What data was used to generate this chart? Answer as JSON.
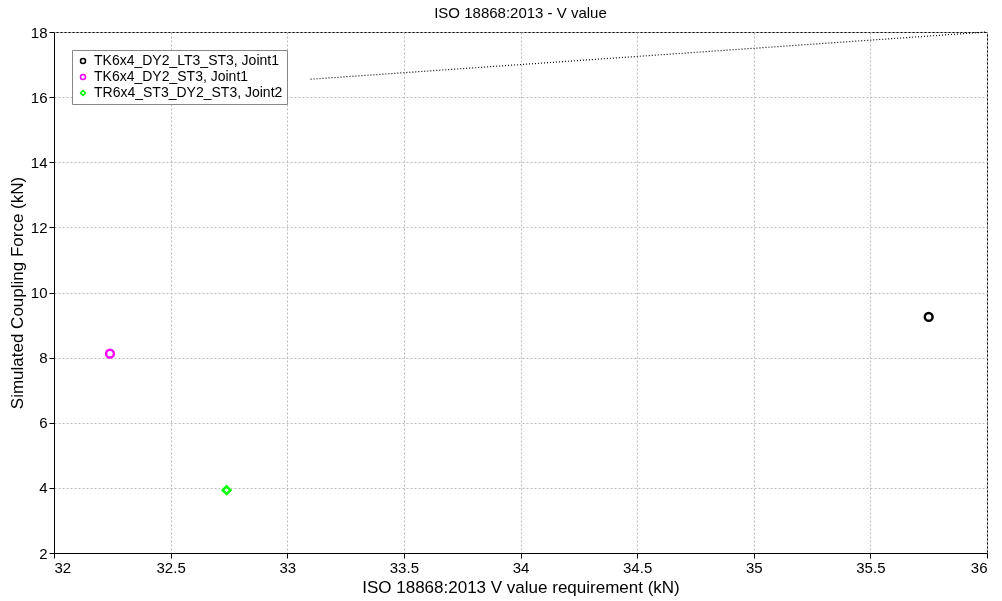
{
  "chart_data": {
    "type": "scatter",
    "title": "ISO 18868:2013 - V value",
    "xlabel": "ISO 18868:2013 V value requirement (kN)",
    "ylabel": "Simulated Coupling Force (kN)",
    "xlim": [
      32,
      36
    ],
    "xticks": [
      32,
      32.5,
      33,
      33.5,
      34,
      34.5,
      35,
      35.5,
      36
    ],
    "ylim": [
      2,
      18
    ],
    "yticks": [
      2,
      4,
      6,
      8,
      10,
      12,
      14,
      16,
      18
    ],
    "grid": true,
    "legend": "top left",
    "series": [
      {
        "name": "TK6x4_DY2_LT3_ST3, Joint1",
        "color": "#000000",
        "marker": "circle",
        "x": [
          35.75
        ],
        "values": [
          9.25
        ]
      },
      {
        "name": "TK6x4_DY2_ST3, Joint1",
        "color": "#ff00ff",
        "marker": "circle",
        "x": [
          32.24
        ],
        "values": [
          8.12
        ]
      },
      {
        "name": "TR6x4_ST3_DY2_ST3, Joint2",
        "color": "#00ff00",
        "marker": "diamond",
        "x": [
          32.74
        ],
        "values": [
          3.93
        ]
      },
      {
        "type": "line",
        "color": "#000000",
        "line_style": "dotted",
        "x": [
          33.1,
          36
        ],
        "values": [
          16.55,
          18
        ]
      }
    ]
  }
}
